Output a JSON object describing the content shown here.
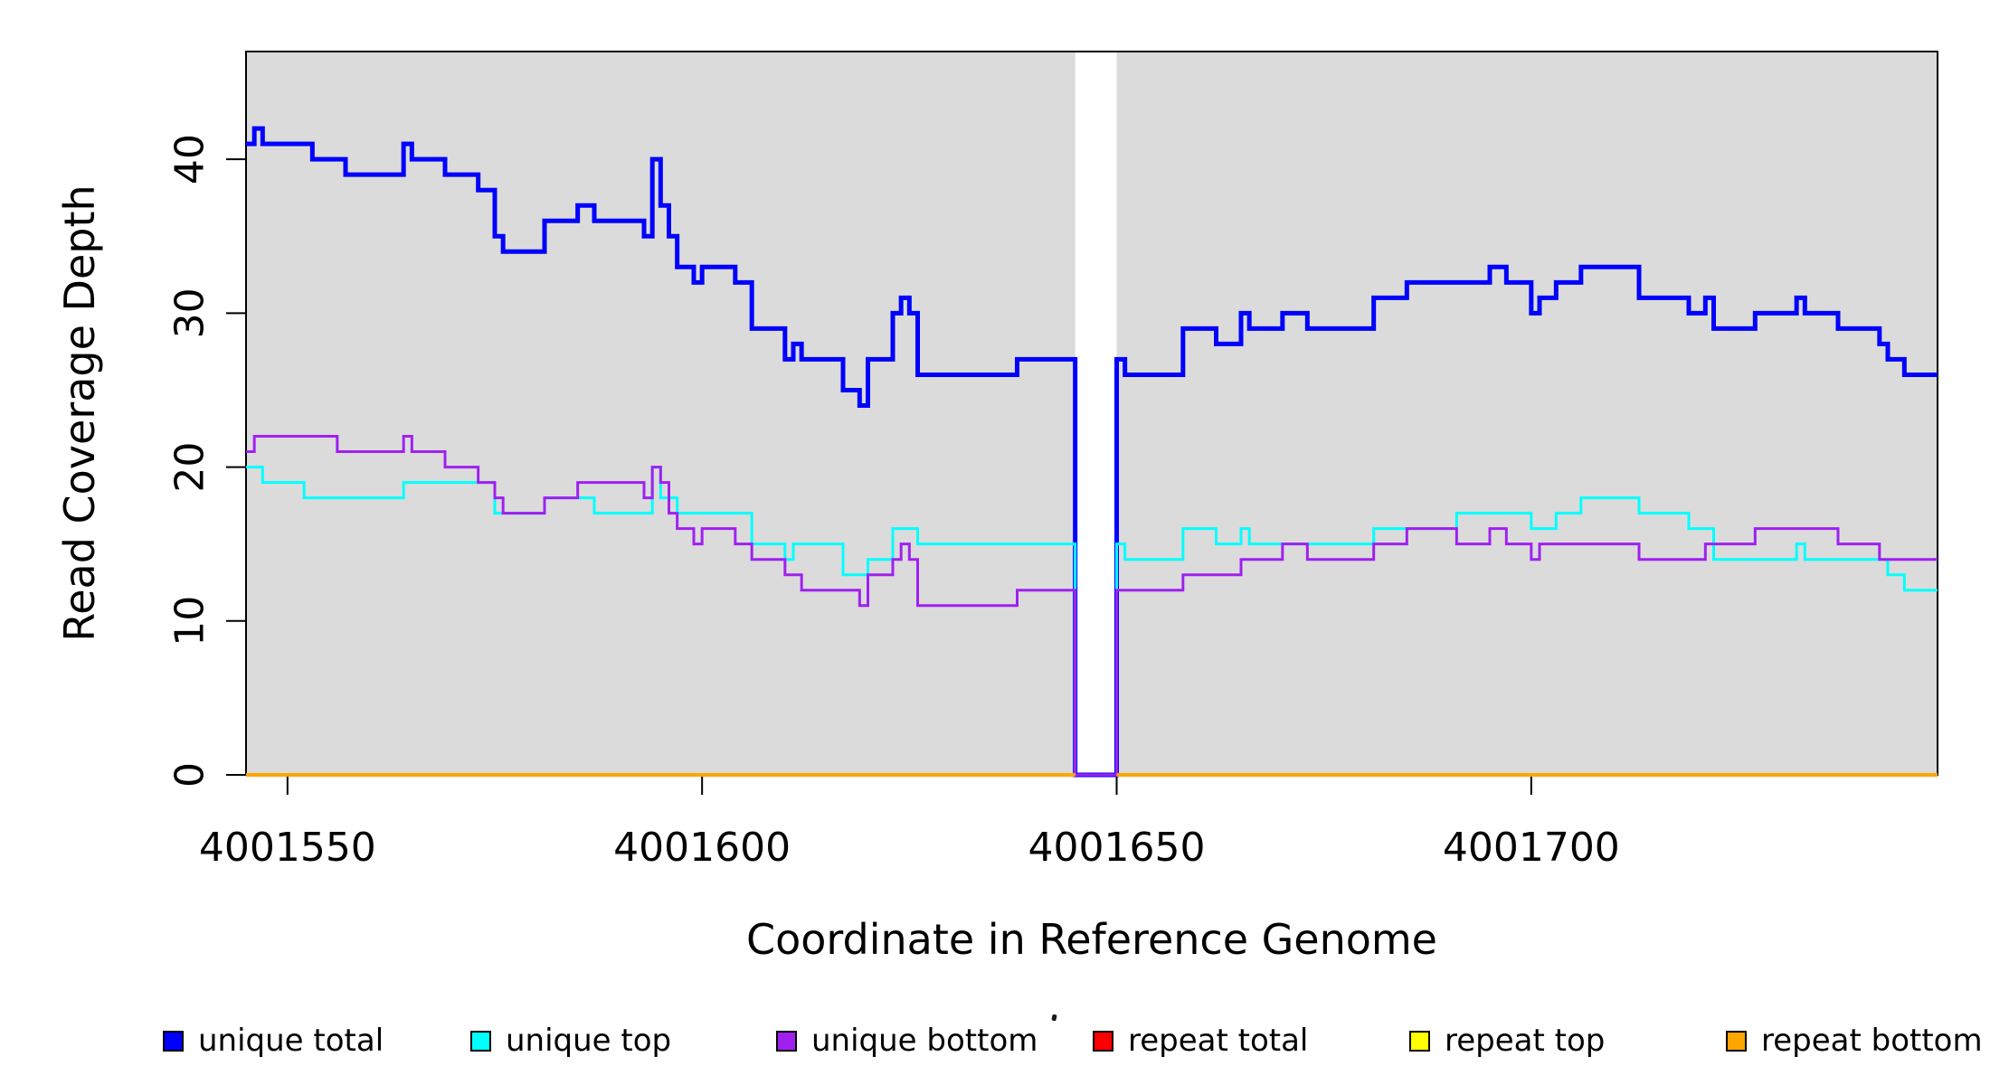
{
  "chart_data": {
    "type": "line",
    "subtype": "step",
    "title": "",
    "xlabel": "Coordinate in Reference Genome",
    "ylabel": "Read Coverage Depth",
    "xlim": [
      4001545,
      4001749
    ],
    "ylim": [
      0,
      47
    ],
    "x_ticks": [
      4001550,
      4001600,
      4001650,
      4001700
    ],
    "y_ticks": [
      0,
      10,
      20,
      30,
      40
    ],
    "grid": false,
    "legend_position": "bottom",
    "panel_bg": "#DBDBDB",
    "outer_bg": "#FFFFFF",
    "axis_color": "#000000",
    "no_data_region": [
      4001645,
      4001650
    ],
    "series": [
      {
        "name": "unique-total",
        "label": "unique total",
        "color": "#0000FF",
        "width": 5,
        "runs": [
          [
            4001545,
            4001545,
            41
          ],
          [
            4001546,
            4001546,
            42
          ],
          [
            4001547,
            4001552,
            41
          ],
          [
            4001553,
            4001556,
            40
          ],
          [
            4001557,
            4001563,
            39
          ],
          [
            4001564,
            4001564,
            41
          ],
          [
            4001565,
            4001568,
            40
          ],
          [
            4001569,
            4001572,
            39
          ],
          [
            4001573,
            4001574,
            38
          ],
          [
            4001575,
            4001575,
            35
          ],
          [
            4001576,
            4001580,
            34
          ],
          [
            4001581,
            4001584,
            36
          ],
          [
            4001585,
            4001586,
            37
          ],
          [
            4001587,
            4001592,
            36
          ],
          [
            4001593,
            4001593,
            35
          ],
          [
            4001594,
            4001594,
            40
          ],
          [
            4001595,
            4001595,
            37
          ],
          [
            4001596,
            4001596,
            35
          ],
          [
            4001597,
            4001598,
            33
          ],
          [
            4001599,
            4001599,
            32
          ],
          [
            4001600,
            4001603,
            33
          ],
          [
            4001604,
            4001605,
            32
          ],
          [
            4001606,
            4001609,
            29
          ],
          [
            4001610,
            4001610,
            27
          ],
          [
            4001611,
            4001611,
            28
          ],
          [
            4001612,
            4001616,
            27
          ],
          [
            4001617,
            4001618,
            25
          ],
          [
            4001619,
            4001619,
            24
          ],
          [
            4001620,
            4001622,
            27
          ],
          [
            4001623,
            4001623,
            30
          ],
          [
            4001624,
            4001624,
            31
          ],
          [
            4001625,
            4001625,
            30
          ],
          [
            4001626,
            4001637,
            26
          ],
          [
            4001638,
            4001644,
            27
          ],
          [
            4001645,
            4001649,
            0
          ],
          [
            4001650,
            4001650,
            27
          ],
          [
            4001651,
            4001657,
            26
          ],
          [
            4001658,
            4001661,
            29
          ],
          [
            4001662,
            4001664,
            28
          ],
          [
            4001665,
            4001665,
            30
          ],
          [
            4001666,
            4001669,
            29
          ],
          [
            4001670,
            4001672,
            30
          ],
          [
            4001673,
            4001680,
            29
          ],
          [
            4001681,
            4001684,
            31
          ],
          [
            4001685,
            4001694,
            32
          ],
          [
            4001695,
            4001696,
            33
          ],
          [
            4001697,
            4001699,
            32
          ],
          [
            4001700,
            4001700,
            30
          ],
          [
            4001701,
            4001702,
            31
          ],
          [
            4001703,
            4001705,
            32
          ],
          [
            4001706,
            4001712,
            33
          ],
          [
            4001713,
            4001718,
            31
          ],
          [
            4001719,
            4001720,
            30
          ],
          [
            4001721,
            4001721,
            31
          ],
          [
            4001722,
            4001726,
            29
          ],
          [
            4001727,
            4001731,
            30
          ],
          [
            4001732,
            4001732,
            31
          ],
          [
            4001733,
            4001736,
            30
          ],
          [
            4001737,
            4001741,
            29
          ],
          [
            4001742,
            4001742,
            28
          ],
          [
            4001743,
            4001744,
            27
          ],
          [
            4001745,
            4001748,
            26
          ]
        ]
      },
      {
        "name": "unique-top",
        "label": "unique top",
        "color": "#00FFFF",
        "width": 3,
        "runs": [
          [
            4001545,
            4001546,
            20
          ],
          [
            4001547,
            4001551,
            19
          ],
          [
            4001552,
            4001563,
            18
          ],
          [
            4001564,
            4001574,
            19
          ],
          [
            4001575,
            4001580,
            17
          ],
          [
            4001581,
            4001586,
            18
          ],
          [
            4001587,
            4001593,
            17
          ],
          [
            4001594,
            4001594,
            20
          ],
          [
            4001595,
            4001596,
            18
          ],
          [
            4001597,
            4001605,
            17
          ],
          [
            4001606,
            4001609,
            15
          ],
          [
            4001610,
            4001610,
            14
          ],
          [
            4001611,
            4001616,
            15
          ],
          [
            4001617,
            4001619,
            13
          ],
          [
            4001620,
            4001622,
            14
          ],
          [
            4001623,
            4001625,
            16
          ],
          [
            4001626,
            4001644,
            15
          ],
          [
            4001645,
            4001649,
            0
          ],
          [
            4001650,
            4001650,
            15
          ],
          [
            4001651,
            4001657,
            14
          ],
          [
            4001658,
            4001661,
            16
          ],
          [
            4001662,
            4001664,
            15
          ],
          [
            4001665,
            4001665,
            16
          ],
          [
            4001666,
            4001680,
            15
          ],
          [
            4001681,
            4001690,
            16
          ],
          [
            4001691,
            4001699,
            17
          ],
          [
            4001700,
            4001702,
            16
          ],
          [
            4001703,
            4001705,
            17
          ],
          [
            4001706,
            4001712,
            18
          ],
          [
            4001713,
            4001718,
            17
          ],
          [
            4001719,
            4001721,
            16
          ],
          [
            4001722,
            4001731,
            14
          ],
          [
            4001732,
            4001732,
            15
          ],
          [
            4001733,
            4001742,
            14
          ],
          [
            4001743,
            4001744,
            13
          ],
          [
            4001745,
            4001748,
            12
          ]
        ]
      },
      {
        "name": "unique-bottom",
        "label": "unique bottom",
        "color": "#A020F0",
        "width": 3,
        "runs": [
          [
            4001545,
            4001545,
            21
          ],
          [
            4001546,
            4001555,
            22
          ],
          [
            4001556,
            4001563,
            21
          ],
          [
            4001564,
            4001564,
            22
          ],
          [
            4001565,
            4001568,
            21
          ],
          [
            4001569,
            4001572,
            20
          ],
          [
            4001573,
            4001574,
            19
          ],
          [
            4001575,
            4001575,
            18
          ],
          [
            4001576,
            4001580,
            17
          ],
          [
            4001581,
            4001584,
            18
          ],
          [
            4001585,
            4001592,
            19
          ],
          [
            4001593,
            4001593,
            18
          ],
          [
            4001594,
            4001594,
            20
          ],
          [
            4001595,
            4001595,
            19
          ],
          [
            4001596,
            4001596,
            17
          ],
          [
            4001597,
            4001598,
            16
          ],
          [
            4001599,
            4001599,
            15
          ],
          [
            4001600,
            4001603,
            16
          ],
          [
            4001604,
            4001605,
            15
          ],
          [
            4001606,
            4001609,
            14
          ],
          [
            4001610,
            4001611,
            13
          ],
          [
            4001612,
            4001618,
            12
          ],
          [
            4001619,
            4001619,
            11
          ],
          [
            4001620,
            4001622,
            13
          ],
          [
            4001623,
            4001623,
            14
          ],
          [
            4001624,
            4001624,
            15
          ],
          [
            4001625,
            4001625,
            14
          ],
          [
            4001626,
            4001637,
            11
          ],
          [
            4001638,
            4001644,
            12
          ],
          [
            4001645,
            4001649,
            0
          ],
          [
            4001650,
            4001657,
            12
          ],
          [
            4001658,
            4001664,
            13
          ],
          [
            4001665,
            4001669,
            14
          ],
          [
            4001670,
            4001672,
            15
          ],
          [
            4001673,
            4001680,
            14
          ],
          [
            4001681,
            4001684,
            15
          ],
          [
            4001685,
            4001690,
            16
          ],
          [
            4001691,
            4001694,
            15
          ],
          [
            4001695,
            4001696,
            16
          ],
          [
            4001697,
            4001699,
            15
          ],
          [
            4001700,
            4001700,
            14
          ],
          [
            4001701,
            4001712,
            15
          ],
          [
            4001713,
            4001720,
            14
          ],
          [
            4001721,
            4001726,
            15
          ],
          [
            4001727,
            4001736,
            16
          ],
          [
            4001737,
            4001741,
            15
          ],
          [
            4001742,
            4001748,
            14
          ]
        ]
      },
      {
        "name": "repeat-total",
        "label": "repeat total",
        "color": "#FF0000",
        "width": 3,
        "runs": [
          [
            4001545,
            4001644,
            0
          ],
          [
            4001650,
            4001748,
            0
          ]
        ]
      },
      {
        "name": "repeat-top",
        "label": "repeat top",
        "color": "#FFFF00",
        "width": 3,
        "runs": [
          [
            4001545,
            4001644,
            0
          ],
          [
            4001650,
            4001748,
            0
          ]
        ]
      },
      {
        "name": "repeat-bottom",
        "label": "repeat bottom",
        "color": "#FFA500",
        "width": 4,
        "runs": [
          [
            4001545,
            4001644,
            0
          ],
          [
            4001650,
            4001748,
            0
          ]
        ]
      }
    ]
  }
}
